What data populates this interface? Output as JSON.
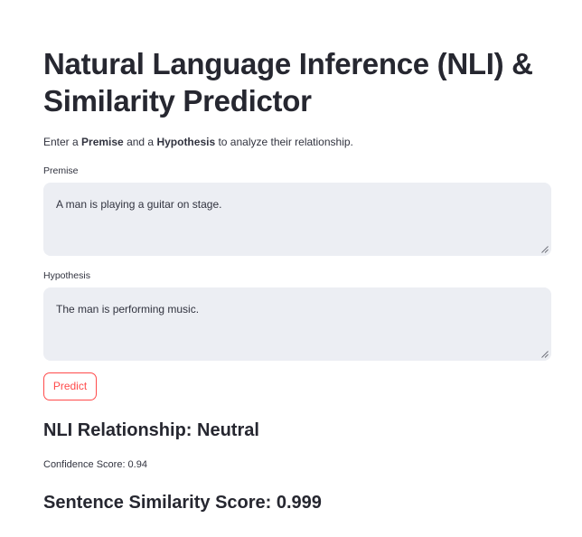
{
  "header": {
    "title": "Natural Language Inference (NLI) & Similarity Predictor"
  },
  "intro": {
    "prefix": "Enter a ",
    "premise_bold": "Premise",
    "middle": " and a ",
    "hypothesis_bold": "Hypothesis",
    "suffix": " to analyze their relationship."
  },
  "form": {
    "premise": {
      "label": "Premise",
      "value": "A man is playing a guitar on stage."
    },
    "hypothesis": {
      "label": "Hypothesis",
      "value": "The man is performing music."
    },
    "predict_label": "Predict"
  },
  "results": {
    "nli_heading": "NLI Relationship: Neutral",
    "confidence_text": "Confidence Score: 0.94",
    "similarity_heading": "Sentence Similarity Score: 0.999"
  },
  "colors": {
    "accent": "#ff4b4b",
    "input_background": "#eceef3",
    "text": "#31333f"
  }
}
